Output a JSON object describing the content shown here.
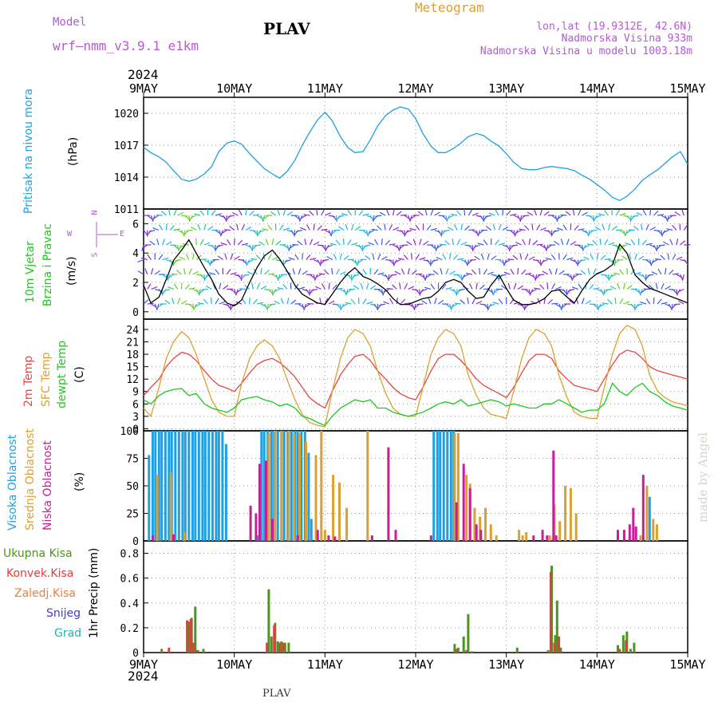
{
  "header": {
    "model_label": "Model",
    "model_name": "wrf–nmm_v3.9.1  e1km",
    "title": "PLAV",
    "meteogram": "Meteogram",
    "coords": "lon,lat (19.9312E, 42.6N)",
    "elev": "Nadmorska Visina 933m",
    "elev_model": "Nadmorska Visina u modelu 1003.18m",
    "year": "2024",
    "footer_title": "PLAV",
    "watermark": "made by Angel"
  },
  "colors": {
    "pressure": "#1ea0e6",
    "temp2m": "#e64646",
    "sfc": "#dca032",
    "dew": "#1ec81e",
    "high_cloud": "#1ea0e6",
    "mid_cloud": "#dca032",
    "low_cloud": "#c81e96",
    "total_precip": "#4b961e",
    "conv_precip": "#e63c3c",
    "frozen": "#e6823c",
    "snow": "#3c3ce6",
    "hail": "#1eb4b4",
    "wind_label": "#1ec81e",
    "purple": "#b45ad2"
  },
  "time_axis": {
    "labels": [
      "9MAY",
      "10MAY",
      "11MAY",
      "12MAY",
      "13MAY",
      "14MAY",
      "15MAY"
    ],
    "days": 6
  },
  "panel_labels": {
    "pressure": [
      "Pritisak na nivou mora",
      "(hPa)"
    ],
    "wind": [
      "10m Vjetar",
      "Brzina i Pravac",
      "(m/s)"
    ],
    "wind_compass": [
      "N",
      "W",
      "E",
      "S"
    ],
    "temp": [
      "2m Temp",
      "SFC Temp",
      "dewpt Temp",
      "(C)"
    ],
    "cloud": [
      "Visoka Oblacnost",
      "Srednja Oblacnost",
      "Niska Oblacnost",
      "(%)"
    ],
    "precip": [
      "Ukupna Kisa",
      "Konvek.Kisa",
      "Zaledj.Kisa",
      "Snijeg",
      "Grad",
      "1hr Precip (mm)"
    ]
  },
  "chart_data": [
    {
      "type": "line",
      "title": "",
      "ylabel": "(hPa)",
      "ylim": [
        1011,
        1021.5
      ],
      "yticks": [
        1011,
        1014,
        1017,
        1020
      ],
      "grid": true,
      "x_days": [
        0,
        0.08,
        0.17,
        0.25,
        0.33,
        0.42,
        0.5,
        0.58,
        0.67,
        0.75,
        0.83,
        0.92,
        1.0,
        1.08,
        1.17,
        1.25,
        1.33,
        1.42,
        1.5,
        1.58,
        1.67,
        1.75,
        1.83,
        1.92,
        2.0,
        2.08,
        2.17,
        2.25,
        2.33,
        2.42,
        2.5,
        2.58,
        2.67,
        2.75,
        2.83,
        2.92,
        3.0,
        3.08,
        3.17,
        3.25,
        3.33,
        3.42,
        3.5,
        3.58,
        3.67,
        3.75,
        3.83,
        3.92,
        4.0,
        4.08,
        4.17,
        4.25,
        4.33,
        4.42,
        4.5,
        4.58,
        4.67,
        4.75,
        4.83,
        4.92,
        5.0,
        5.08,
        5.17,
        5.25,
        5.33,
        5.42,
        5.5,
        5.58,
        5.67,
        5.75,
        5.83,
        5.92,
        6.0
      ],
      "series": [
        {
          "name": "Pritisak na nivou mora",
          "values": [
            1016.8,
            1016.3,
            1015.9,
            1015.4,
            1014.6,
            1013.8,
            1013.6,
            1013.8,
            1014.3,
            1015.0,
            1016.4,
            1017.2,
            1017.4,
            1017.1,
            1016.2,
            1015.5,
            1014.8,
            1014.3,
            1013.9,
            1014.5,
            1015.6,
            1017.0,
            1018.2,
            1019.4,
            1020.1,
            1019.3,
            1017.8,
            1016.8,
            1016.3,
            1016.4,
            1017.5,
            1018.8,
            1019.8,
            1020.3,
            1020.6,
            1020.4,
            1019.5,
            1018.1,
            1016.9,
            1016.3,
            1016.3,
            1016.7,
            1017.2,
            1017.8,
            1018.1,
            1017.9,
            1017.4,
            1016.9,
            1016.2,
            1015.4,
            1014.8,
            1014.7,
            1014.7,
            1014.9,
            1015.0,
            1014.9,
            1014.8,
            1014.6,
            1014.2,
            1013.8,
            1013.3,
            1012.8,
            1012.1,
            1011.8,
            1012.2,
            1012.9,
            1013.7,
            1014.2,
            1014.7,
            1015.3,
            1015.9,
            1016.4,
            1015.2
          ]
        }
      ]
    },
    {
      "type": "line",
      "title": "",
      "ylabel": "(m/s)",
      "ylim": [
        -0.5,
        7
      ],
      "yticks": [
        0,
        2,
        4,
        6
      ],
      "grid": true,
      "x_days": [
        0,
        0.08,
        0.17,
        0.25,
        0.33,
        0.42,
        0.5,
        0.58,
        0.67,
        0.75,
        0.83,
        0.92,
        1.0,
        1.08,
        1.17,
        1.25,
        1.33,
        1.42,
        1.5,
        1.58,
        1.67,
        1.75,
        1.83,
        1.92,
        2.0,
        2.08,
        2.17,
        2.25,
        2.33,
        2.42,
        2.5,
        2.58,
        2.67,
        2.75,
        2.83,
        2.92,
        3.0,
        3.08,
        3.17,
        3.25,
        3.33,
        3.42,
        3.5,
        3.58,
        3.67,
        3.75,
        3.83,
        3.92,
        4.0,
        4.08,
        4.17,
        4.25,
        4.33,
        4.42,
        4.5,
        4.58,
        4.67,
        4.75,
        4.83,
        4.92,
        5.0,
        5.08,
        5.17,
        5.25,
        5.33,
        5.42,
        5.5,
        5.58,
        5.67,
        5.75,
        5.83,
        5.92,
        6.0
      ],
      "series": [
        {
          "name": "10m Vjetar",
          "values": [
            1.8,
            0.6,
            1.0,
            2.2,
            3.5,
            4.2,
            4.9,
            4.0,
            3.0,
            2.2,
            1.2,
            0.6,
            0.4,
            0.8,
            2.0,
            3.0,
            3.8,
            4.2,
            3.6,
            2.8,
            1.8,
            1.2,
            0.9,
            0.6,
            0.5,
            1.2,
            2.0,
            2.6,
            3.0,
            2.4,
            2.2,
            1.9,
            1.5,
            0.9,
            0.5,
            0.5,
            0.7,
            0.9,
            1.0,
            1.4,
            2.0,
            2.2,
            2.0,
            1.4,
            0.9,
            1.0,
            1.8,
            2.5,
            1.6,
            0.8,
            0.5,
            0.5,
            0.6,
            0.9,
            1.4,
            1.5,
            1.0,
            0.6,
            1.4,
            2.2,
            2.6,
            2.8,
            3.2,
            4.6,
            4.0,
            2.5,
            2.0,
            1.6,
            1.4,
            1.2,
            1.0,
            0.8,
            0.6
          ]
        }
      ]
    },
    {
      "type": "line",
      "title": "",
      "ylabel": "(C)",
      "ylim": [
        -0.5,
        26.5
      ],
      "yticks": [
        0,
        3,
        6,
        9,
        12,
        15,
        18,
        21,
        24
      ],
      "grid": true,
      "x_days": [
        0,
        0.08,
        0.17,
        0.25,
        0.33,
        0.42,
        0.5,
        0.58,
        0.67,
        0.75,
        0.83,
        0.92,
        1.0,
        1.08,
        1.17,
        1.25,
        1.33,
        1.42,
        1.5,
        1.58,
        1.67,
        1.75,
        1.83,
        1.92,
        2.0,
        2.08,
        2.17,
        2.25,
        2.33,
        2.42,
        2.5,
        2.58,
        2.67,
        2.75,
        2.83,
        2.92,
        3.0,
        3.08,
        3.17,
        3.25,
        3.33,
        3.42,
        3.5,
        3.58,
        3.67,
        3.75,
        3.83,
        3.92,
        4.0,
        4.08,
        4.17,
        4.25,
        4.33,
        4.42,
        4.5,
        4.58,
        4.67,
        4.75,
        4.83,
        4.92,
        5.0,
        5.08,
        5.17,
        5.25,
        5.33,
        5.42,
        5.5,
        5.58,
        5.67,
        5.75,
        5.83,
        5.92,
        6.0
      ],
      "series": [
        {
          "name": "2m Temp",
          "values": [
            8,
            10,
            12,
            15,
            17,
            18.5,
            18,
            16.5,
            14,
            12,
            10.5,
            9.8,
            9,
            11,
            13.5,
            15.5,
            16.5,
            17,
            16,
            14.5,
            12.5,
            10,
            7.5,
            6,
            5,
            9,
            13,
            15.5,
            17.5,
            18,
            16.5,
            14,
            12,
            10,
            8.5,
            7.5,
            7,
            10,
            14,
            17,
            18,
            18,
            16.5,
            14.5,
            12,
            10.5,
            9.5,
            8.5,
            7.5,
            10,
            13.5,
            16.5,
            18,
            18,
            17,
            14,
            12,
            10.5,
            10,
            9.5,
            9,
            12,
            15.5,
            18,
            19,
            18.5,
            17,
            15,
            14,
            13.5,
            13,
            12.5,
            12
          ]
        },
        {
          "name": "SFC Temp",
          "values": [
            5,
            3,
            10,
            17,
            21,
            23.5,
            22,
            18,
            12,
            7,
            4,
            3,
            3,
            11,
            17,
            20,
            21.5,
            20,
            17,
            12,
            7,
            3.5,
            1.5,
            0.8,
            0.5,
            9,
            17,
            22,
            24,
            23,
            20,
            14,
            8.5,
            5,
            3.5,
            3,
            3,
            10,
            18,
            22,
            24,
            23,
            20,
            13,
            8,
            5,
            3.5,
            3,
            2.5,
            9,
            17,
            22,
            24,
            23,
            20,
            13,
            7.5,
            4,
            3,
            2.5,
            2.5,
            10,
            18,
            23,
            25,
            24,
            20,
            13,
            9,
            7.5,
            6.5,
            6,
            5.5
          ]
        },
        {
          "name": "dewpt Temp",
          "values": [
            7,
            6,
            8,
            9,
            9.5,
            9.7,
            8,
            8.5,
            6,
            5,
            4.5,
            4,
            5,
            7,
            7.5,
            7.8,
            7,
            6.5,
            5.5,
            6,
            5,
            3,
            2.5,
            1.5,
            0.8,
            3,
            5,
            6,
            7,
            6.5,
            7,
            5,
            5,
            4,
            3.5,
            3,
            3.5,
            4,
            5,
            6,
            6.5,
            6,
            7,
            5.5,
            6,
            6.5,
            7,
            6.5,
            5.5,
            6,
            5.5,
            5,
            5,
            6,
            6,
            7,
            6,
            5,
            4,
            4.5,
            4.5,
            6,
            11,
            9,
            8,
            10,
            11,
            9,
            8,
            6.5,
            5.5,
            5,
            4.5
          ]
        }
      ]
    },
    {
      "type": "bar",
      "title": "",
      "ylabel": "(%)",
      "ylim": [
        0,
        100
      ],
      "yticks": [
        0,
        25,
        50,
        75,
        100
      ],
      "grid": true,
      "series": [
        {
          "name": "Visoka Oblacnost",
          "x_days": [
            0.06,
            0.1,
            0.13,
            0.17,
            0.2,
            0.24,
            0.28,
            0.31,
            0.35,
            0.39,
            0.43,
            0.46,
            0.5,
            0.54,
            0.57,
            0.61,
            0.65,
            0.68,
            0.72,
            0.76,
            0.8,
            0.83,
            0.87,
            0.91,
            1.26,
            1.3,
            1.33,
            1.37,
            1.41,
            1.44,
            1.48,
            1.52,
            1.55,
            1.59,
            1.63,
            1.67,
            1.7,
            1.74,
            1.78,
            1.82,
            1.85,
            3.2,
            3.24,
            3.27,
            3.31,
            3.35,
            3.39,
            3.42,
            4.52,
            5.58
          ],
          "values": [
            78,
            100,
            100,
            100,
            100,
            100,
            100,
            100,
            100,
            100,
            100,
            100,
            100,
            100,
            100,
            100,
            100,
            100,
            100,
            100,
            100,
            100,
            100,
            88,
            5,
            100,
            100,
            100,
            100,
            100,
            100,
            100,
            100,
            100,
            100,
            100,
            100,
            100,
            100,
            80,
            20,
            100,
            100,
            100,
            100,
            100,
            100,
            100,
            3,
            40
          ]
        },
        {
          "name": "Srednja Oblacnost",
          "x_days": [
            0.15,
            0.3,
            0.45,
            1.38,
            1.45,
            1.52,
            1.6,
            1.66,
            1.72,
            1.79,
            1.9,
            1.96,
            2.0,
            2.09,
            2.16,
            2.24,
            2.47,
            3.43,
            3.47,
            3.56,
            3.6,
            3.65,
            3.71,
            3.77,
            3.83,
            3.89,
            4.14,
            4.18,
            4.22,
            4.48,
            4.53,
            4.59,
            4.65,
            4.71,
            4.77,
            5.3,
            5.48,
            5.55,
            5.62,
            5.66
          ],
          "values": [
            60,
            62,
            8,
            98,
            100,
            100,
            100,
            98,
            98,
            90,
            78,
            100,
            10,
            60,
            53,
            30,
            100,
            98,
            98,
            60,
            52,
            30,
            22,
            30,
            15,
            5,
            10,
            5,
            8,
            5,
            33,
            18,
            50,
            48,
            25,
            10,
            5,
            50,
            20,
            15
          ]
        },
        {
          "name": "Niska Oblacnost",
          "x_days": [
            0.1,
            0.33,
            1.18,
            1.24,
            1.28,
            1.35,
            1.42,
            1.7,
            1.92,
            2.04,
            2.11,
            2.52,
            2.7,
            2.78,
            3.17,
            3.45,
            3.53,
            3.6,
            3.67,
            3.72,
            4.3,
            4.4,
            4.45,
            4.52,
            4.55,
            5.23,
            5.3,
            5.36,
            5.4,
            5.43,
            5.51
          ],
          "values": [
            5,
            6,
            32,
            25,
            70,
            73,
            20,
            5,
            10,
            5,
            4,
            5,
            85,
            10,
            5,
            35,
            70,
            48,
            15,
            10,
            5,
            10,
            5,
            82,
            5,
            10,
            10,
            15,
            30,
            13,
            60
          ]
        }
      ]
    },
    {
      "type": "bar",
      "title": "",
      "ylabel": "1hr Precip (mm)",
      "ylim": [
        0,
        0.9
      ],
      "yticks": [
        0,
        0.2,
        0.4,
        0.6,
        0.8
      ],
      "grid": true,
      "series": [
        {
          "name": "Ukupna Kisa",
          "x_days": [
            0.2,
            0.5,
            0.53,
            0.57,
            0.6,
            0.66,
            1.38,
            1.41,
            1.45,
            1.48,
            1.52,
            1.56,
            1.6,
            3.43,
            3.47,
            3.53,
            3.58,
            3.62,
            4.12,
            4.46,
            4.5,
            4.54,
            4.56,
            4.6,
            5.23,
            5.29,
            5.33,
            5.37,
            5.41
          ],
          "values": [
            0.03,
            0.25,
            0.28,
            0.37,
            0.02,
            0.03,
            0.51,
            0.13,
            0.24,
            0.09,
            0.09,
            0.08,
            0.08,
            0.07,
            0.04,
            0.13,
            0.31,
            0.01,
            0.04,
            0.02,
            0.7,
            0.14,
            0.42,
            0.04,
            0.06,
            0.14,
            0.17,
            0.03,
            0.08
          ]
        },
        {
          "name": "Konvek.Kisa",
          "x_days": [
            0.28,
            0.48,
            0.52,
            0.55,
            0.58,
            1.36,
            1.44,
            1.5,
            1.54,
            3.45,
            3.56,
            4.49,
            4.53,
            4.58,
            5.25,
            5.32
          ],
          "values": [
            0.04,
            0.26,
            0.27,
            0.08,
            0.02,
            0.08,
            0.22,
            0.08,
            0.08,
            0.03,
            0.02,
            0.65,
            0.08,
            0.13,
            0.03,
            0.1
          ]
        }
      ]
    }
  ]
}
